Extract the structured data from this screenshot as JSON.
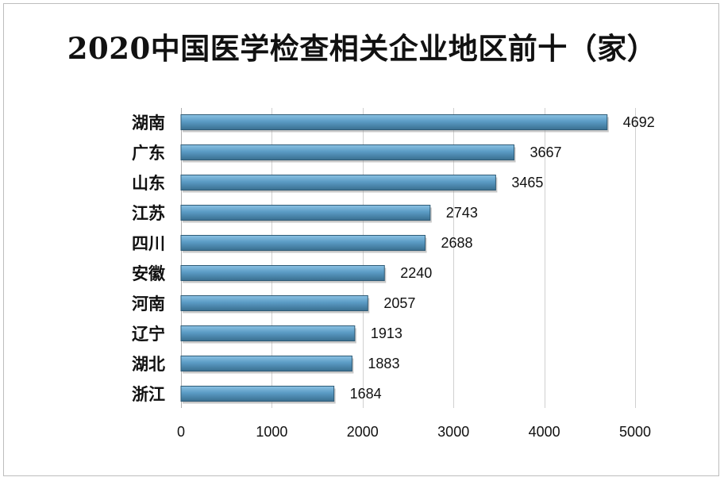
{
  "chart_data": {
    "type": "bar",
    "orientation": "horizontal",
    "title": "2020中国医学检查相关企业地区前十（家）",
    "categories": [
      "湖南",
      "广东",
      "山东",
      "江苏",
      "四川",
      "安徽",
      "河南",
      "辽宁",
      "湖北",
      "浙江"
    ],
    "values": [
      4692,
      3667,
      3465,
      2743,
      2688,
      2240,
      2057,
      1913,
      1883,
      1684
    ],
    "xlim": [
      0,
      5000
    ],
    "xticks": [
      0,
      1000,
      2000,
      3000,
      4000,
      5000
    ],
    "xlabel": "",
    "ylabel": "",
    "grid": "vertical",
    "legend": "none",
    "data_labels": true,
    "bar_color": "#4f8fb5"
  }
}
